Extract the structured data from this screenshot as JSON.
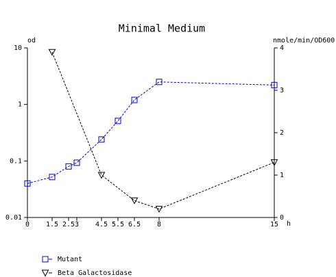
{
  "chart_data": {
    "type": "line",
    "title": "Minimal Medium",
    "y_label": "od",
    "y2_label": "nmole/min/OD600",
    "x_label": "h",
    "xlim": [
      0,
      15
    ],
    "xticks": [
      0,
      1.5,
      2.5,
      3,
      4.5,
      5.5,
      6.5,
      8,
      15
    ],
    "ylim": [
      0.01,
      10
    ],
    "yticks": [
      0.01,
      0.1,
      1,
      10
    ],
    "ylog": true,
    "y2lim": [
      0,
      4
    ],
    "y2ticks": [
      0,
      1,
      2,
      3,
      4
    ],
    "legend": "bottom-left",
    "series": [
      {
        "name": "Mutant",
        "color": "#0000cc",
        "marker": "square",
        "axis": "y",
        "x": [
          0,
          1.5,
          2.5,
          3,
          4.5,
          5.5,
          6.5,
          8,
          15
        ],
        "values": [
          0.04,
          0.052,
          0.08,
          0.093,
          0.24,
          0.51,
          1.2,
          2.5,
          2.2
        ]
      },
      {
        "name": "Beta Galactosidase",
        "color": "#000000",
        "marker": "triangle",
        "axis": "y2",
        "x": [
          1.5,
          4.5,
          6.5,
          8,
          15
        ],
        "values": [
          3.9,
          1.0,
          0.4,
          0.2,
          1.3
        ]
      }
    ]
  }
}
